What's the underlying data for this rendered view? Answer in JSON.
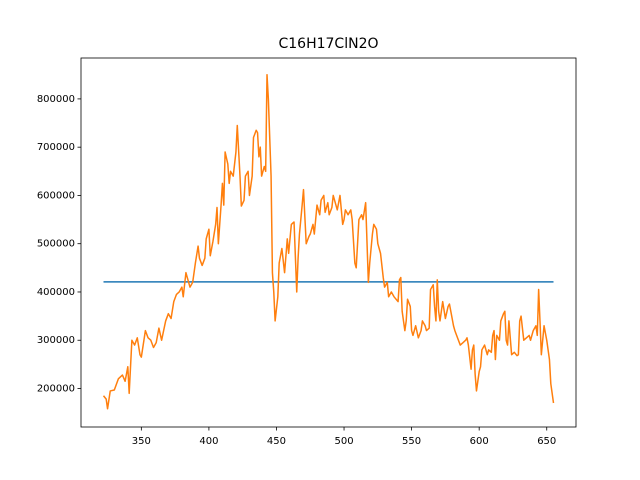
{
  "chart_data": {
    "type": "line",
    "title": "C16H17ClN2O",
    "xlim": [
      305.35,
      671.65
    ],
    "ylim": [
      120250,
      884750
    ],
    "xticks": [
      350,
      400,
      450,
      500,
      550,
      600,
      650
    ],
    "yticks": [
      200000,
      300000,
      400000,
      500000,
      600000,
      700000,
      800000
    ],
    "series": [
      {
        "color": "#1f77b4",
        "x": [
          322,
          655
        ],
        "values": [
          421000,
          421000
        ]
      },
      {
        "color": "#ff7f0e",
        "x": [
          322,
          324,
          325,
          327,
          330,
          333,
          336,
          338,
          340,
          341,
          343,
          345,
          347,
          349,
          350,
          353,
          355,
          357,
          359,
          361,
          363,
          365,
          368,
          370,
          372,
          374,
          376,
          378,
          380,
          381,
          383,
          385,
          386,
          388,
          390,
          392,
          393,
          395,
          397,
          398,
          400,
          401,
          403,
          405,
          406,
          407,
          409,
          410,
          411,
          412,
          414,
          415,
          416,
          418,
          420,
          421,
          423,
          424,
          426,
          427,
          429,
          430,
          432,
          433,
          435,
          436,
          437,
          438,
          439,
          441,
          442,
          443,
          444,
          446,
          447,
          448,
          449,
          451,
          452,
          454,
          456,
          458,
          459,
          461,
          463,
          465,
          466,
          467,
          469,
          470,
          472,
          474,
          475,
          477,
          478,
          480,
          482,
          483,
          485,
          486,
          488,
          489,
          491,
          492,
          494,
          495,
          497,
          499,
          500,
          501,
          503,
          505,
          506,
          508,
          509,
          511,
          513,
          514,
          516,
          518,
          519,
          521,
          522,
          524,
          525,
          527,
          529,
          530,
          532,
          533,
          535,
          537,
          540,
          541,
          542,
          543,
          545,
          546,
          547,
          549,
          550,
          551,
          553,
          555,
          557,
          558,
          560,
          561,
          563,
          564,
          566,
          567,
          568,
          569,
          570,
          571,
          573,
          575,
          577,
          578,
          579,
          581,
          582,
          584,
          586,
          588,
          590,
          591,
          592,
          594,
          595,
          596,
          597,
          598,
          600,
          601,
          602,
          604,
          606,
          607,
          609,
          610,
          611,
          612,
          613,
          615,
          616,
          618,
          619,
          620,
          621,
          622,
          624,
          626,
          628,
          629,
          630,
          631,
          633,
          635,
          637,
          638,
          640,
          642,
          643,
          644,
          645,
          646,
          647,
          648,
          650,
          652,
          653,
          655
        ],
        "values": [
          185000,
          178000,
          158000,
          195000,
          197000,
          220000,
          228000,
          215000,
          245000,
          190000,
          300000,
          290000,
          305000,
          270000,
          265000,
          320000,
          305000,
          300000,
          285000,
          295000,
          325000,
          300000,
          340000,
          355000,
          345000,
          380000,
          395000,
          400000,
          410000,
          390000,
          440000,
          420000,
          410000,
          420000,
          460000,
          495000,
          470000,
          455000,
          470000,
          510000,
          530000,
          475000,
          505000,
          540000,
          575000,
          500000,
          580000,
          625000,
          580000,
          690000,
          665000,
          625000,
          650000,
          640000,
          690000,
          745000,
          640000,
          578000,
          590000,
          640000,
          650000,
          600000,
          640000,
          720000,
          735000,
          730000,
          680000,
          700000,
          640000,
          660000,
          650000,
          850000,
          800000,
          640000,
          440000,
          400000,
          340000,
          390000,
          460000,
          490000,
          440000,
          510000,
          480000,
          540000,
          545000,
          400000,
          470000,
          520000,
          580000,
          612000,
          500000,
          515000,
          520000,
          540000,
          520000,
          580000,
          560000,
          590000,
          600000,
          565000,
          585000,
          560000,
          575000,
          600000,
          580000,
          570000,
          600000,
          540000,
          550000,
          570000,
          560000,
          570000,
          550000,
          460000,
          450000,
          550000,
          560000,
          550000,
          585000,
          420000,
          460000,
          520000,
          540000,
          530000,
          500000,
          480000,
          430000,
          410000,
          420000,
          390000,
          400000,
          390000,
          380000,
          425000,
          430000,
          360000,
          320000,
          340000,
          385000,
          370000,
          320000,
          310000,
          330000,
          305000,
          320000,
          340000,
          330000,
          320000,
          325000,
          405000,
          415000,
          370000,
          340000,
          425000,
          360000,
          340000,
          380000,
          345000,
          370000,
          375000,
          360000,
          330000,
          320000,
          305000,
          290000,
          295000,
          300000,
          305000,
          290000,
          240000,
          280000,
          290000,
          230000,
          195000,
          235000,
          245000,
          280000,
          290000,
          270000,
          280000,
          275000,
          310000,
          320000,
          260000,
          310000,
          300000,
          340000,
          355000,
          360000,
          300000,
          290000,
          340000,
          270000,
          275000,
          268000,
          270000,
          340000,
          350000,
          300000,
          305000,
          310000,
          300000,
          320000,
          330000,
          310000,
          405000,
          340000,
          270000,
          300000,
          330000,
          300000,
          260000,
          210000,
          170000
        ]
      }
    ]
  }
}
